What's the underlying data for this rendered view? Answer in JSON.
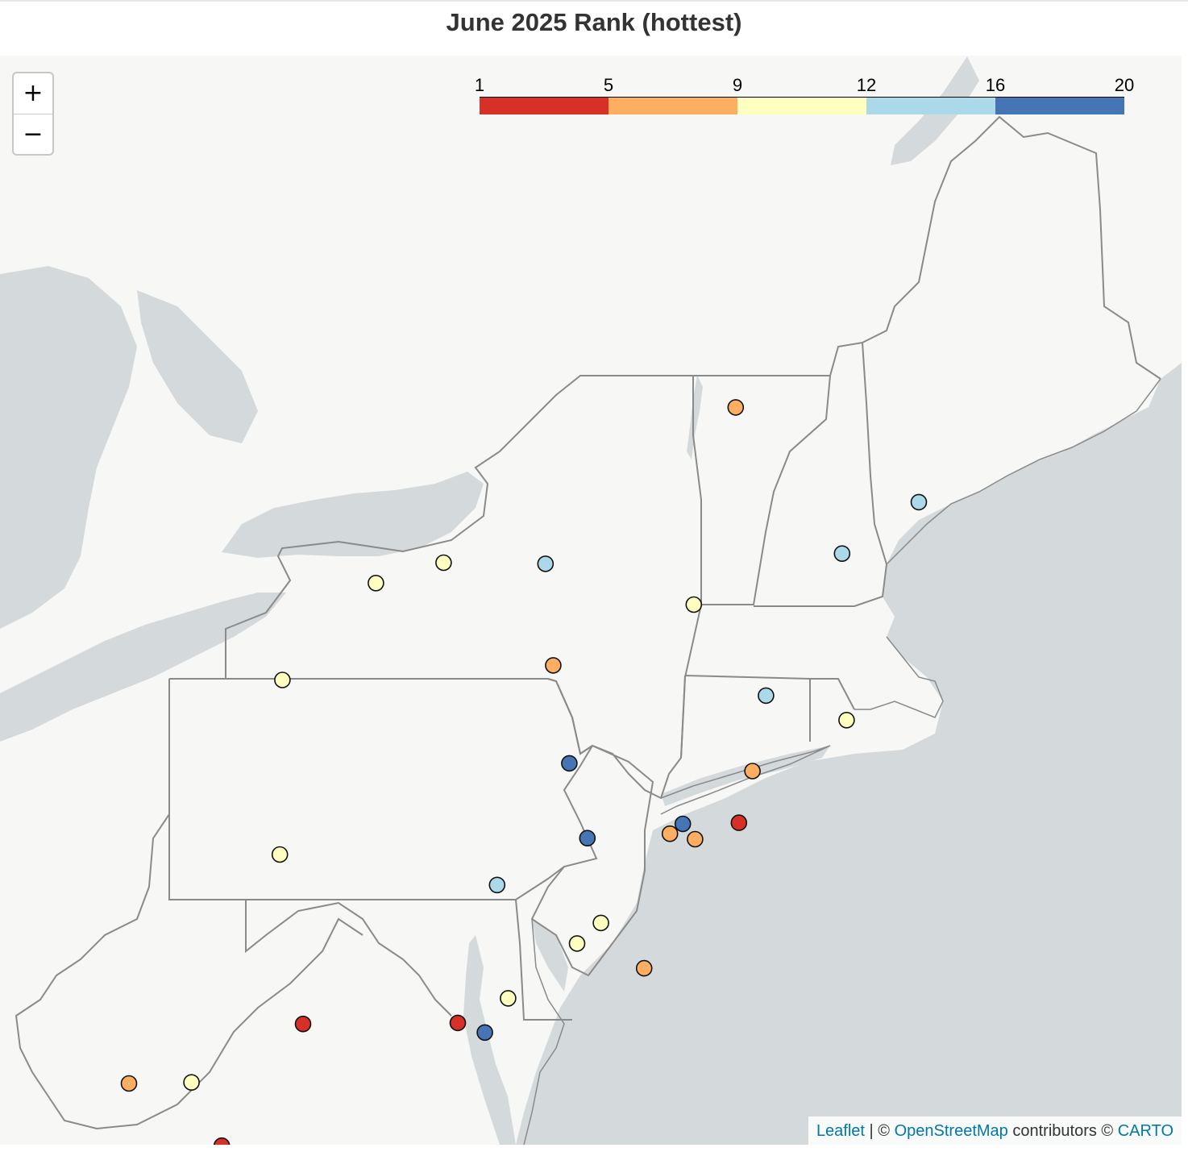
{
  "title": "June 2025 Rank (hottest)",
  "zoom": {
    "in_label": "+",
    "out_label": "−"
  },
  "legend": {
    "ticks": [
      "1",
      "5",
      "9",
      "12",
      "16",
      "20"
    ],
    "bins": [
      {
        "from": 1,
        "to": 5,
        "color": "#d73027"
      },
      {
        "from": 5,
        "to": 9,
        "color": "#fdae61"
      },
      {
        "from": 9,
        "to": 12,
        "color": "#ffffbf"
      },
      {
        "from": 12,
        "to": 16,
        "color": "#abd9e9"
      },
      {
        "from": 16,
        "to": 20,
        "color": "#4575b4"
      }
    ]
  },
  "attribution": {
    "leaflet": "Leaflet",
    "sep1": " | © ",
    "osm": "OpenStreetMap",
    "mid": " contributors © ",
    "carto": "CARTO"
  },
  "colors": {
    "water": "#d4dadc",
    "land": "#f7f7f6",
    "state_border": "#8a8a8a",
    "marker_stroke": "#111111"
  },
  "stations": [
    {
      "lat": 44.47,
      "lon": -73.15,
      "rank_bin": "5-9"
    },
    {
      "lat": 43.65,
      "lon": -70.31,
      "rank_bin": "12-16"
    },
    {
      "lat": 43.2,
      "lon": -71.5,
      "rank_bin": "12-16"
    },
    {
      "lat": 43.11,
      "lon": -76.1,
      "rank_bin": "12-16"
    },
    {
      "lat": 43.12,
      "lon": -77.68,
      "rank_bin": "9-12"
    },
    {
      "lat": 42.94,
      "lon": -78.73,
      "rank_bin": "9-12"
    },
    {
      "lat": 42.75,
      "lon": -73.8,
      "rank_bin": "9-12"
    },
    {
      "lat": 42.21,
      "lon": -75.98,
      "rank_bin": "5-9"
    },
    {
      "lat": 42.08,
      "lon": -80.18,
      "rank_bin": "9-12"
    },
    {
      "lat": 41.94,
      "lon": -72.68,
      "rank_bin": "12-16"
    },
    {
      "lat": 41.72,
      "lon": -71.43,
      "rank_bin": "9-12"
    },
    {
      "lat": 41.33,
      "lon": -75.73,
      "rank_bin": "16-20"
    },
    {
      "lat": 41.26,
      "lon": -72.89,
      "rank_bin": "5-9"
    },
    {
      "lat": 40.79,
      "lon": -73.1,
      "rank_bin": "1-5"
    },
    {
      "lat": 40.78,
      "lon": -73.97,
      "rank_bin": "16-20"
    },
    {
      "lat": 40.69,
      "lon": -74.17,
      "rank_bin": "5-9"
    },
    {
      "lat": 40.64,
      "lon": -73.78,
      "rank_bin": "5-9"
    },
    {
      "lat": 40.65,
      "lon": -75.45,
      "rank_bin": "16-20"
    },
    {
      "lat": 40.5,
      "lon": -80.22,
      "rank_bin": "9-12"
    },
    {
      "lat": 40.22,
      "lon": -76.85,
      "rank_bin": "12-16"
    },
    {
      "lat": 39.87,
      "lon": -75.24,
      "rank_bin": "9-12"
    },
    {
      "lat": 39.68,
      "lon": -75.61,
      "rank_bin": "9-12"
    },
    {
      "lat": 39.45,
      "lon": -74.57,
      "rank_bin": "5-9"
    },
    {
      "lat": 39.17,
      "lon": -76.68,
      "rank_bin": "9-12"
    },
    {
      "lat": 38.94,
      "lon": -77.46,
      "rank_bin": "1-5"
    },
    {
      "lat": 38.85,
      "lon": -77.04,
      "rank_bin": "16-20"
    },
    {
      "lat": 38.93,
      "lon": -79.86,
      "rank_bin": "1-5"
    },
    {
      "lat": 38.38,
      "lon": -81.59,
      "rank_bin": "9-12"
    },
    {
      "lat": 38.37,
      "lon": -82.56,
      "rank_bin": "5-9"
    },
    {
      "lat": 37.78,
      "lon": -81.12,
      "rank_bin": "1-5"
    }
  ]
}
